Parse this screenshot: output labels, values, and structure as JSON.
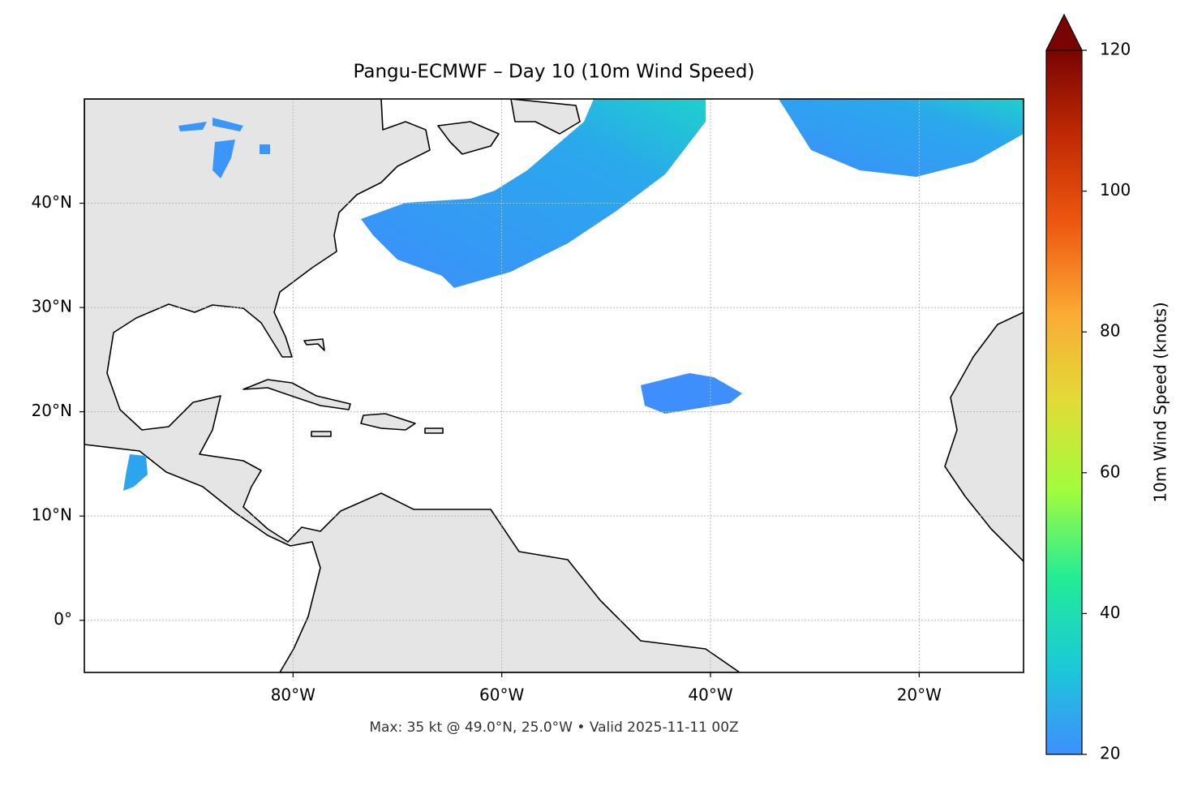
{
  "chart_data": {
    "type": "map",
    "title": "Pangu-ECMWF – Day 10 (10m Wind Speed)",
    "xlim": [
      -100,
      -10
    ],
    "ylim": [
      -5,
      50
    ],
    "xticks": [
      {
        "value": -80,
        "label": "80°W"
      },
      {
        "value": -60,
        "label": "60°W"
      },
      {
        "value": -40,
        "label": "40°W"
      },
      {
        "value": -20,
        "label": "20°W"
      }
    ],
    "yticks": [
      {
        "value": 0,
        "label": "0°"
      },
      {
        "value": 10,
        "label": "10°N"
      },
      {
        "value": 20,
        "label": "20°N"
      },
      {
        "value": 30,
        "label": "30°N"
      },
      {
        "value": 40,
        "label": "40°N"
      }
    ],
    "grid": true,
    "land_color": "#e5e5e5",
    "annotation": "Max: 35 kt @ 49.0°N, 25.0°W • Valid 2025-11-11 00Z",
    "colorbar": {
      "label": "10m Wind Speed (knots)",
      "lim": [
        20,
        120
      ],
      "ticks": [
        20,
        40,
        60,
        80,
        100,
        120
      ],
      "extend": "max",
      "colors": [
        "#3e8ffd",
        "#1bc9d6",
        "#22ec96",
        "#a3fc3c",
        "#e1dc37",
        "#fbab35",
        "#ef5a11",
        "#c22b03",
        "#7a0403"
      ]
    }
  }
}
